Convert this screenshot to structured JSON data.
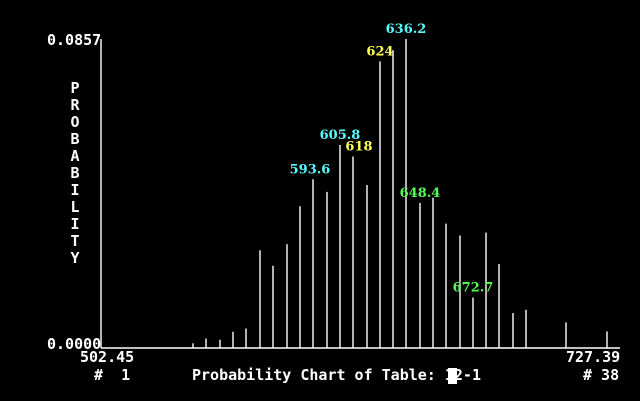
{
  "chart_data": {
    "type": "bar",
    "title": "Probability Chart of Table: 12-1",
    "ylabel": "PROBABILITY",
    "xlabel": "",
    "ylim": [
      0.0,
      0.0857
    ],
    "ytick_labels": [
      "0.0857",
      "0.0000"
    ],
    "xlim": [
      502.45,
      727.39
    ],
    "xtick_labels": [
      "502.45",
      "727.39"
    ],
    "index_labels": [
      "# 1",
      "# 38"
    ],
    "grid": false,
    "values": [
      0.0013,
      0.0026,
      0.0023,
      0.0045,
      0.0054,
      0.0271,
      0.0228,
      0.0288,
      0.0393,
      0.0468,
      0.0433,
      0.0563,
      0.0531,
      0.0452,
      0.0795,
      0.0826,
      0.0857,
      0.0402,
      0.0417,
      0.0345,
      0.0312,
      0.014,
      0.032,
      0.0233,
      0.0097,
      0.0106,
      0.0071,
      0.0046
    ],
    "bar_colors": {
      "bar": "#ffffff",
      "axis": "#ffffff"
    },
    "annotations": [
      {
        "text": "593.6",
        "color": "#55ffff"
      },
      {
        "text": "605.8",
        "color": "#55ffff"
      },
      {
        "text": "618",
        "color": "#ffff55"
      },
      {
        "text": "624",
        "color": "#ffff55"
      },
      {
        "text": "636.2",
        "color": "#55ffff"
      },
      {
        "text": "648.4",
        "color": "#55ff55"
      },
      {
        "text": "672.7",
        "color": "#55ff55"
      }
    ]
  },
  "footer": {
    "caption": "Probability Chart of Table: 12-1",
    "index_min": "#  1",
    "index_max": "# 38"
  }
}
